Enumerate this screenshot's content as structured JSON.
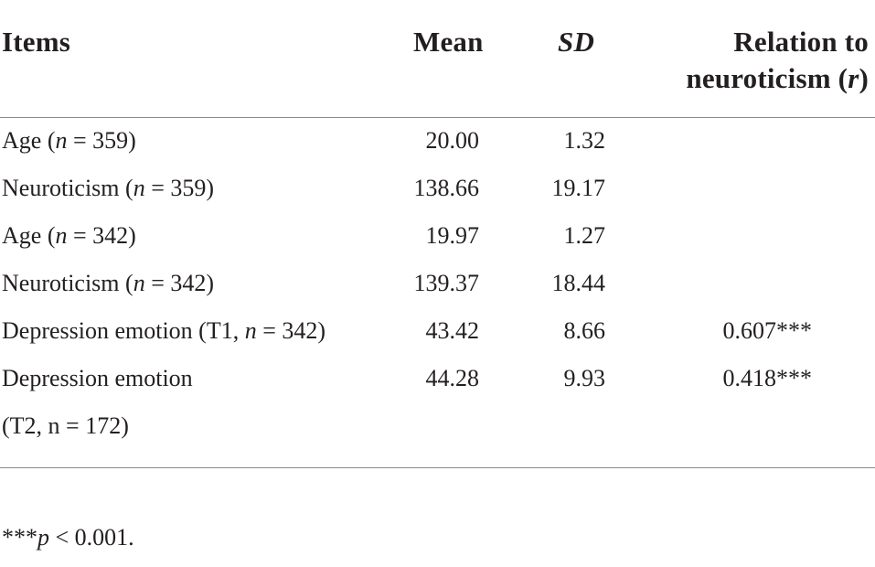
{
  "table": {
    "headers": {
      "items": "Items",
      "mean": "Mean",
      "sd": "SD",
      "relation_line1": "Relation to",
      "relation_line2_prefix": "neuroticism (",
      "relation_line2_var": "r",
      "relation_line2_suffix": ")"
    },
    "rows": [
      {
        "label": "Age (",
        "n_symbol": "n",
        "n_text": " = 359)",
        "mean": "20.00",
        "sd": "1.32",
        "r": ""
      },
      {
        "label": "Neuroticism (",
        "n_symbol": "n",
        "n_text": " = 359)",
        "mean": "138.66",
        "sd": "19.17",
        "r": ""
      },
      {
        "label": "Age (",
        "n_symbol": "n",
        "n_text": " = 342)",
        "mean": "19.97",
        "sd": "1.27",
        "r": ""
      },
      {
        "label": "Neuroticism (",
        "n_symbol": "n",
        "n_text": " = 342)",
        "mean": "139.37",
        "sd": "18.44",
        "r": ""
      },
      {
        "label": "Depression emotion (T1, ",
        "n_symbol": "n",
        "n_text": " = 342)",
        "mean": "43.42",
        "sd": "8.66",
        "r": "0.607***"
      },
      {
        "label": "Depression emotion",
        "continuation": "(T2, n = 172)",
        "mean": "44.28",
        "sd": "9.93",
        "r": "0.418***"
      }
    ]
  },
  "footnote": {
    "stars": "***",
    "p_symbol": "p",
    "text": " < 0.001."
  }
}
